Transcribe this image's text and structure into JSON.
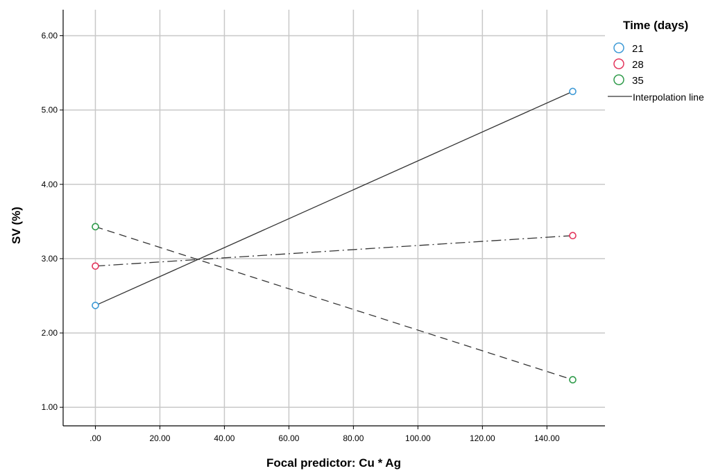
{
  "chart_data": {
    "type": "line",
    "xlabel": "Focal predictor: Cu * Ag",
    "ylabel": "SV (%)",
    "xlim": [
      -10,
      158
    ],
    "ylim": [
      0.75,
      6.35
    ],
    "x_ticks": [
      ".00",
      "20.00",
      "40.00",
      "60.00",
      "80.00",
      "100.00",
      "120.00",
      "140.00"
    ],
    "y_ticks": [
      "1.00",
      "2.00",
      "3.00",
      "4.00",
      "5.00",
      "6.00"
    ],
    "grid": true,
    "legend": {
      "title": "Time (days)",
      "placement": "top-right",
      "line_label": "Interpolation line"
    },
    "series": [
      {
        "name": "21",
        "color": "#3e9ad6",
        "dash": "solid",
        "x": [
          0,
          148
        ],
        "y": [
          2.37,
          5.25
        ]
      },
      {
        "name": "28",
        "color": "#e3355c",
        "dash": "dashdot",
        "x": [
          0,
          148
        ],
        "y": [
          2.9,
          3.31
        ]
      },
      {
        "name": "35",
        "color": "#2f9b4a",
        "dash": "dashed",
        "x": [
          0,
          148
        ],
        "y": [
          3.43,
          1.37
        ]
      }
    ]
  }
}
